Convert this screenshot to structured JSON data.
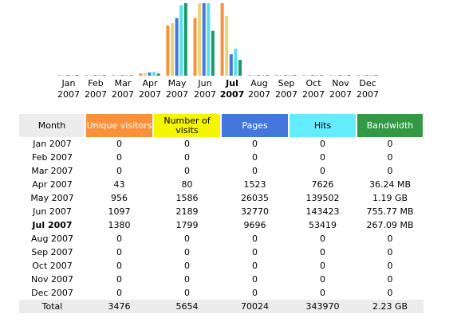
{
  "chart_data": {
    "type": "bar",
    "categories": [
      "Jan 2007",
      "Feb 2007",
      "Mar 2007",
      "Apr 2007",
      "May 2007",
      "Jun 2007",
      "Jul 2007",
      "Aug 2007",
      "Sep 2007",
      "Oct 2007",
      "Nov 2007",
      "Dec 2007"
    ],
    "current_month_index": 6,
    "series": [
      {
        "name": "Unique visitors",
        "color": "#f9913b",
        "values": [
          0,
          0,
          0,
          43,
          956,
          1097,
          1380,
          0,
          0,
          0,
          0,
          0
        ]
      },
      {
        "name": "Number of visits",
        "color": "#e8d57a",
        "values": [
          0,
          0,
          0,
          80,
          1586,
          2189,
          1799,
          0,
          0,
          0,
          0,
          0
        ]
      },
      {
        "name": "Pages",
        "color": "#4477dd",
        "values": [
          0,
          0,
          0,
          1523,
          26035,
          32770,
          9696,
          0,
          0,
          0,
          0,
          0
        ]
      },
      {
        "name": "Hits",
        "color": "#55e0ee",
        "values": [
          0,
          0,
          0,
          7626,
          139502,
          143423,
          53419,
          0,
          0,
          0,
          0,
          0
        ]
      },
      {
        "name": "Bandwidth",
        "color": "#1a9a6a",
        "values": [
          0,
          0,
          0,
          36.24,
          1218.56,
          755.77,
          267.09,
          0,
          0,
          0,
          0,
          0
        ]
      }
    ]
  },
  "months": [
    {
      "label": "Jan",
      "year": "2007"
    },
    {
      "label": "Feb",
      "year": "2007"
    },
    {
      "label": "Mar",
      "year": "2007"
    },
    {
      "label": "Apr",
      "year": "2007"
    },
    {
      "label": "May",
      "year": "2007"
    },
    {
      "label": "Jun",
      "year": "2007"
    },
    {
      "label": "Jul",
      "year": "2007"
    },
    {
      "label": "Aug",
      "year": "2007"
    },
    {
      "label": "Sep",
      "year": "2007"
    },
    {
      "label": "Oct",
      "year": "2007"
    },
    {
      "label": "Nov",
      "year": "2007"
    },
    {
      "label": "Dec",
      "year": "2007"
    }
  ],
  "table": {
    "headers": {
      "month": "Month",
      "unique": "Unique visitors",
      "visits": "Number of visits",
      "pages": "Pages",
      "hits": "Hits",
      "bandwidth": "Bandwidth"
    },
    "rows": [
      {
        "month": "Jan 2007",
        "unique": "0",
        "visits": "0",
        "pages": "0",
        "hits": "0",
        "bandwidth": "0"
      },
      {
        "month": "Feb 2007",
        "unique": "0",
        "visits": "0",
        "pages": "0",
        "hits": "0",
        "bandwidth": "0"
      },
      {
        "month": "Mar 2007",
        "unique": "0",
        "visits": "0",
        "pages": "0",
        "hits": "0",
        "bandwidth": "0"
      },
      {
        "month": "Apr 2007",
        "unique": "43",
        "visits": "80",
        "pages": "1523",
        "hits": "7626",
        "bandwidth": "36.24 MB"
      },
      {
        "month": "May 2007",
        "unique": "956",
        "visits": "1586",
        "pages": "26035",
        "hits": "139502",
        "bandwidth": "1.19 GB"
      },
      {
        "month": "Jun 2007",
        "unique": "1097",
        "visits": "2189",
        "pages": "32770",
        "hits": "143423",
        "bandwidth": "755.77 MB"
      },
      {
        "month": "Jul 2007",
        "unique": "1380",
        "visits": "1799",
        "pages": "9696",
        "hits": "53419",
        "bandwidth": "267.09 MB"
      },
      {
        "month": "Aug 2007",
        "unique": "0",
        "visits": "0",
        "pages": "0",
        "hits": "0",
        "bandwidth": "0"
      },
      {
        "month": "Sep 2007",
        "unique": "0",
        "visits": "0",
        "pages": "0",
        "hits": "0",
        "bandwidth": "0"
      },
      {
        "month": "Oct 2007",
        "unique": "0",
        "visits": "0",
        "pages": "0",
        "hits": "0",
        "bandwidth": "0"
      },
      {
        "month": "Nov 2007",
        "unique": "0",
        "visits": "0",
        "pages": "0",
        "hits": "0",
        "bandwidth": "0"
      },
      {
        "month": "Dec 2007",
        "unique": "0",
        "visits": "0",
        "pages": "0",
        "hits": "0",
        "bandwidth": "0"
      }
    ],
    "total": {
      "label": "Total",
      "unique": "3476",
      "visits": "5654",
      "pages": "70024",
      "hits": "343970",
      "bandwidth": "2.23 GB"
    }
  }
}
